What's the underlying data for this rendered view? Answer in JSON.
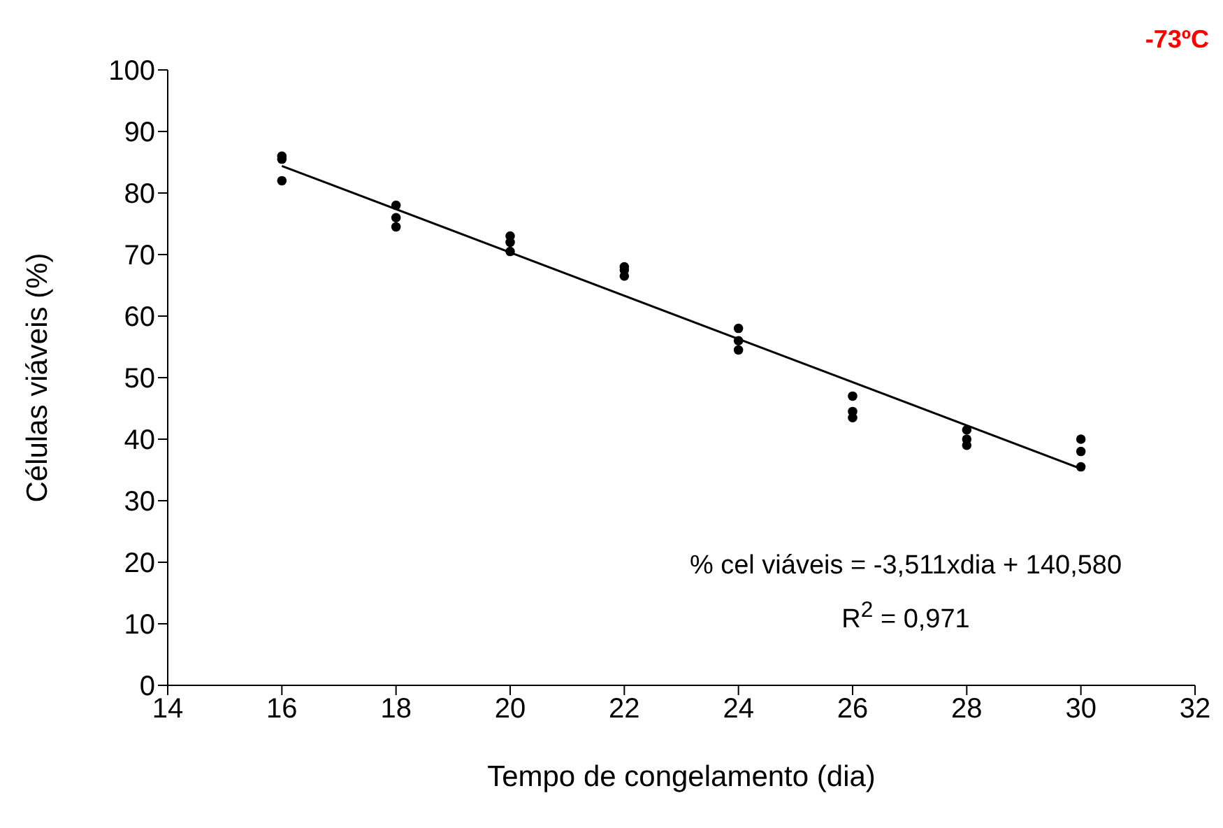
{
  "chart_data": {
    "type": "scatter",
    "title": "-73ºC",
    "xlabel": "Tempo de congelamento (dia)",
    "ylabel": "Células viáveis (%)",
    "x": [
      16,
      16,
      16,
      18,
      18,
      18,
      20,
      20,
      20,
      22,
      22,
      22,
      24,
      24,
      24,
      26,
      26,
      26,
      28,
      28,
      28,
      30,
      30,
      30
    ],
    "series": [
      {
        "color": "#000000",
        "marker": "circle",
        "values": [
          86,
          85.5,
          82,
          78,
          76,
          74.5,
          73,
          72,
          70.5,
          68,
          67.5,
          66.5,
          58,
          56,
          54.5,
          47,
          44.5,
          43.5,
          41.5,
          40,
          39,
          40,
          38,
          35.5
        ]
      },
      {
        "type": "line",
        "color": "#000000",
        "line_style": "solid",
        "x": [
          16,
          30
        ],
        "values": [
          84.4,
          35.2
        ]
      }
    ],
    "xlim": [
      14,
      32
    ],
    "xticks": [
      14,
      16,
      18,
      20,
      22,
      24,
      26,
      28,
      30,
      32
    ],
    "ylim": [
      0,
      100
    ],
    "yticks": [
      0,
      10,
      20,
      30,
      40,
      50,
      60,
      70,
      80,
      90,
      100
    ],
    "annotations": [
      "% cel viáveis = -3,511xdia + 140,580",
      "R$^{2}$ = 0,971"
    ]
  }
}
